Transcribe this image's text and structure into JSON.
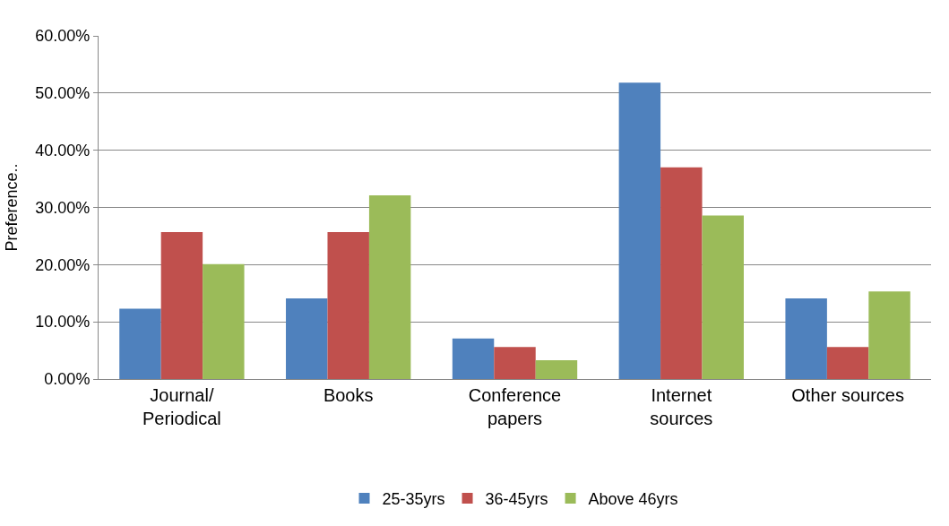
{
  "chart_data": {
    "type": "bar",
    "ylabel": "Preference..",
    "categories": [
      "Journal/\nPeriodical",
      "Books",
      "Conference\npapers",
      "Internet\nsources",
      "Other sources"
    ],
    "series": [
      {
        "name": "25-35yrs",
        "color": "#4f81bd",
        "values": [
          12.3,
          14.1,
          7.1,
          51.8,
          14.1
        ]
      },
      {
        "name": "36-45yrs",
        "color": "#c0504d",
        "values": [
          25.7,
          25.7,
          5.6,
          37.0,
          5.6
        ]
      },
      {
        "name": "Above 46yrs",
        "color": "#9bbb59",
        "values": [
          20.1,
          32.1,
          3.3,
          28.6,
          15.3
        ]
      }
    ],
    "ylim": [
      0,
      60
    ],
    "yticks": [
      {
        "value": 0,
        "label": "0.00%"
      },
      {
        "value": 10,
        "label": "10.00%"
      },
      {
        "value": 20,
        "label": "20.00%"
      },
      {
        "value": 30,
        "label": "30.00%"
      },
      {
        "value": 40,
        "label": "40.00%"
      },
      {
        "value": 50,
        "label": "50.00%"
      },
      {
        "value": 60,
        "label": "60.00%"
      }
    ],
    "grid": "y",
    "legend": "bottom"
  }
}
